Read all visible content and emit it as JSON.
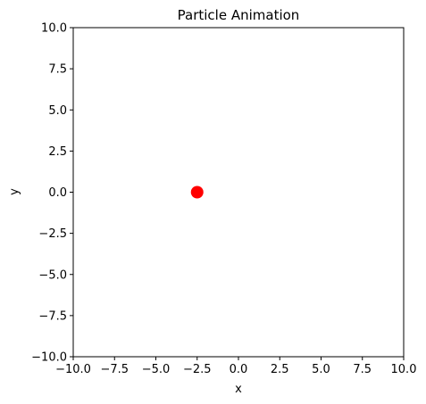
{
  "chart_data": {
    "type": "scatter",
    "title": "Particle Animation",
    "xlabel": "x",
    "ylabel": "y",
    "xlim": [
      -10,
      10
    ],
    "ylim": [
      -10,
      10
    ],
    "xticks": [
      -10,
      -7.5,
      -5,
      -2.5,
      0,
      2.5,
      5,
      7.5,
      10
    ],
    "xtick_labels": [
      "−10.0",
      "−7.5",
      "−5.0",
      "−2.5",
      "0.0",
      "2.5",
      "5.0",
      "7.5",
      "10.0"
    ],
    "yticks": [
      10,
      7.5,
      5,
      2.5,
      0,
      -2.5,
      -5,
      -7.5,
      -10
    ],
    "ytick_labels": [
      "10.0",
      "7.5",
      "5.0",
      "2.5",
      "0.0",
      "−2.5",
      "−5.0",
      "−7.5",
      "−10.0"
    ],
    "grid": false,
    "points": [
      {
        "x": -2.5,
        "y": 0,
        "color": "#ff0000"
      }
    ]
  }
}
